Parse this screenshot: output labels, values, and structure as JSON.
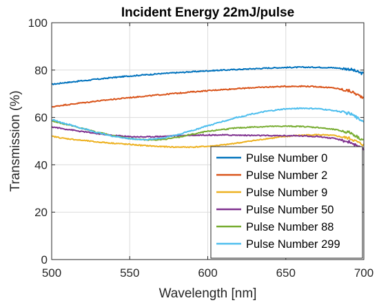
{
  "chart_data": {
    "type": "line",
    "title": "Incident Energy 22mJ/pulse",
    "xlabel": "Wavelength [nm]",
    "ylabel": "Transmission (%)",
    "xlim": [
      500,
      700
    ],
    "ylim": [
      0,
      100
    ],
    "xticks": [
      500,
      550,
      600,
      650,
      700
    ],
    "yticks": [
      0,
      20,
      40,
      60,
      80,
      100
    ],
    "grid": true,
    "legend_position": "bottom-right",
    "series": [
      {
        "name": "Pulse Number 0",
        "color": "#0072BD",
        "x": [
          500,
          510,
          520,
          530,
          540,
          550,
          560,
          570,
          580,
          590,
          600,
          610,
          620,
          630,
          640,
          650,
          660,
          670,
          680,
          690,
          700
        ],
        "y": [
          74.0,
          74.8,
          75.5,
          76.2,
          76.9,
          77.5,
          78.0,
          78.5,
          78.9,
          79.3,
          79.7,
          80.0,
          80.3,
          80.6,
          80.9,
          81.1,
          81.2,
          81.2,
          81.0,
          80.5,
          78.5
        ]
      },
      {
        "name": "Pulse Number 2",
        "color": "#D95319",
        "x": [
          500,
          510,
          520,
          530,
          540,
          550,
          560,
          570,
          580,
          590,
          600,
          610,
          620,
          630,
          640,
          650,
          660,
          670,
          680,
          690,
          700
        ],
        "y": [
          64.5,
          65.4,
          66.2,
          67.0,
          67.7,
          68.4,
          69.0,
          69.6,
          70.2,
          70.8,
          71.3,
          71.8,
          72.2,
          72.6,
          72.9,
          73.1,
          73.2,
          73.0,
          72.5,
          71.3,
          68.5
        ]
      },
      {
        "name": "Pulse Number 9",
        "color": "#EDB120",
        "x": [
          500,
          510,
          520,
          530,
          540,
          550,
          560,
          570,
          580,
          590,
          600,
          610,
          620,
          630,
          640,
          650,
          660,
          670,
          680,
          690,
          700
        ],
        "y": [
          52.0,
          51.0,
          50.3,
          49.6,
          49.1,
          48.6,
          48.1,
          47.7,
          47.5,
          47.5,
          47.8,
          48.4,
          49.3,
          50.3,
          51.2,
          52.0,
          52.5,
          52.7,
          52.4,
          51.3,
          48.5
        ]
      },
      {
        "name": "Pulse Number 50",
        "color": "#7E2F8E",
        "x": [
          500,
          510,
          520,
          530,
          540,
          550,
          560,
          570,
          580,
          590,
          600,
          610,
          620,
          630,
          640,
          650,
          660,
          670,
          680,
          690,
          700
        ],
        "y": [
          56.0,
          55.0,
          54.0,
          53.1,
          52.4,
          51.9,
          51.8,
          52.0,
          52.3,
          52.5,
          52.6,
          52.6,
          52.5,
          52.4,
          52.3,
          52.3,
          52.2,
          52.0,
          51.2,
          49.8,
          46.5
        ]
      },
      {
        "name": "Pulse Number 88",
        "color": "#77AC30",
        "x": [
          500,
          510,
          520,
          530,
          540,
          550,
          560,
          570,
          580,
          590,
          600,
          610,
          620,
          630,
          640,
          650,
          660,
          670,
          680,
          690,
          700
        ],
        "y": [
          58.5,
          57.0,
          55.3,
          53.6,
          52.2,
          51.1,
          50.6,
          50.6,
          51.5,
          52.9,
          54.1,
          55.0,
          55.6,
          56.0,
          56.2,
          56.3,
          56.2,
          55.8,
          55.0,
          53.8,
          50.5
        ]
      },
      {
        "name": "Pulse Number 299",
        "color": "#4DBEEE",
        "x": [
          500,
          510,
          520,
          530,
          540,
          550,
          560,
          570,
          580,
          590,
          600,
          610,
          620,
          630,
          640,
          650,
          660,
          670,
          680,
          690,
          700
        ],
        "y": [
          59.0,
          57.2,
          55.3,
          53.5,
          52.0,
          51.0,
          50.6,
          51.2,
          52.6,
          54.5,
          56.5,
          58.4,
          60.2,
          61.7,
          62.8,
          63.6,
          63.9,
          63.7,
          63.0,
          61.8,
          58.5
        ]
      }
    ]
  }
}
